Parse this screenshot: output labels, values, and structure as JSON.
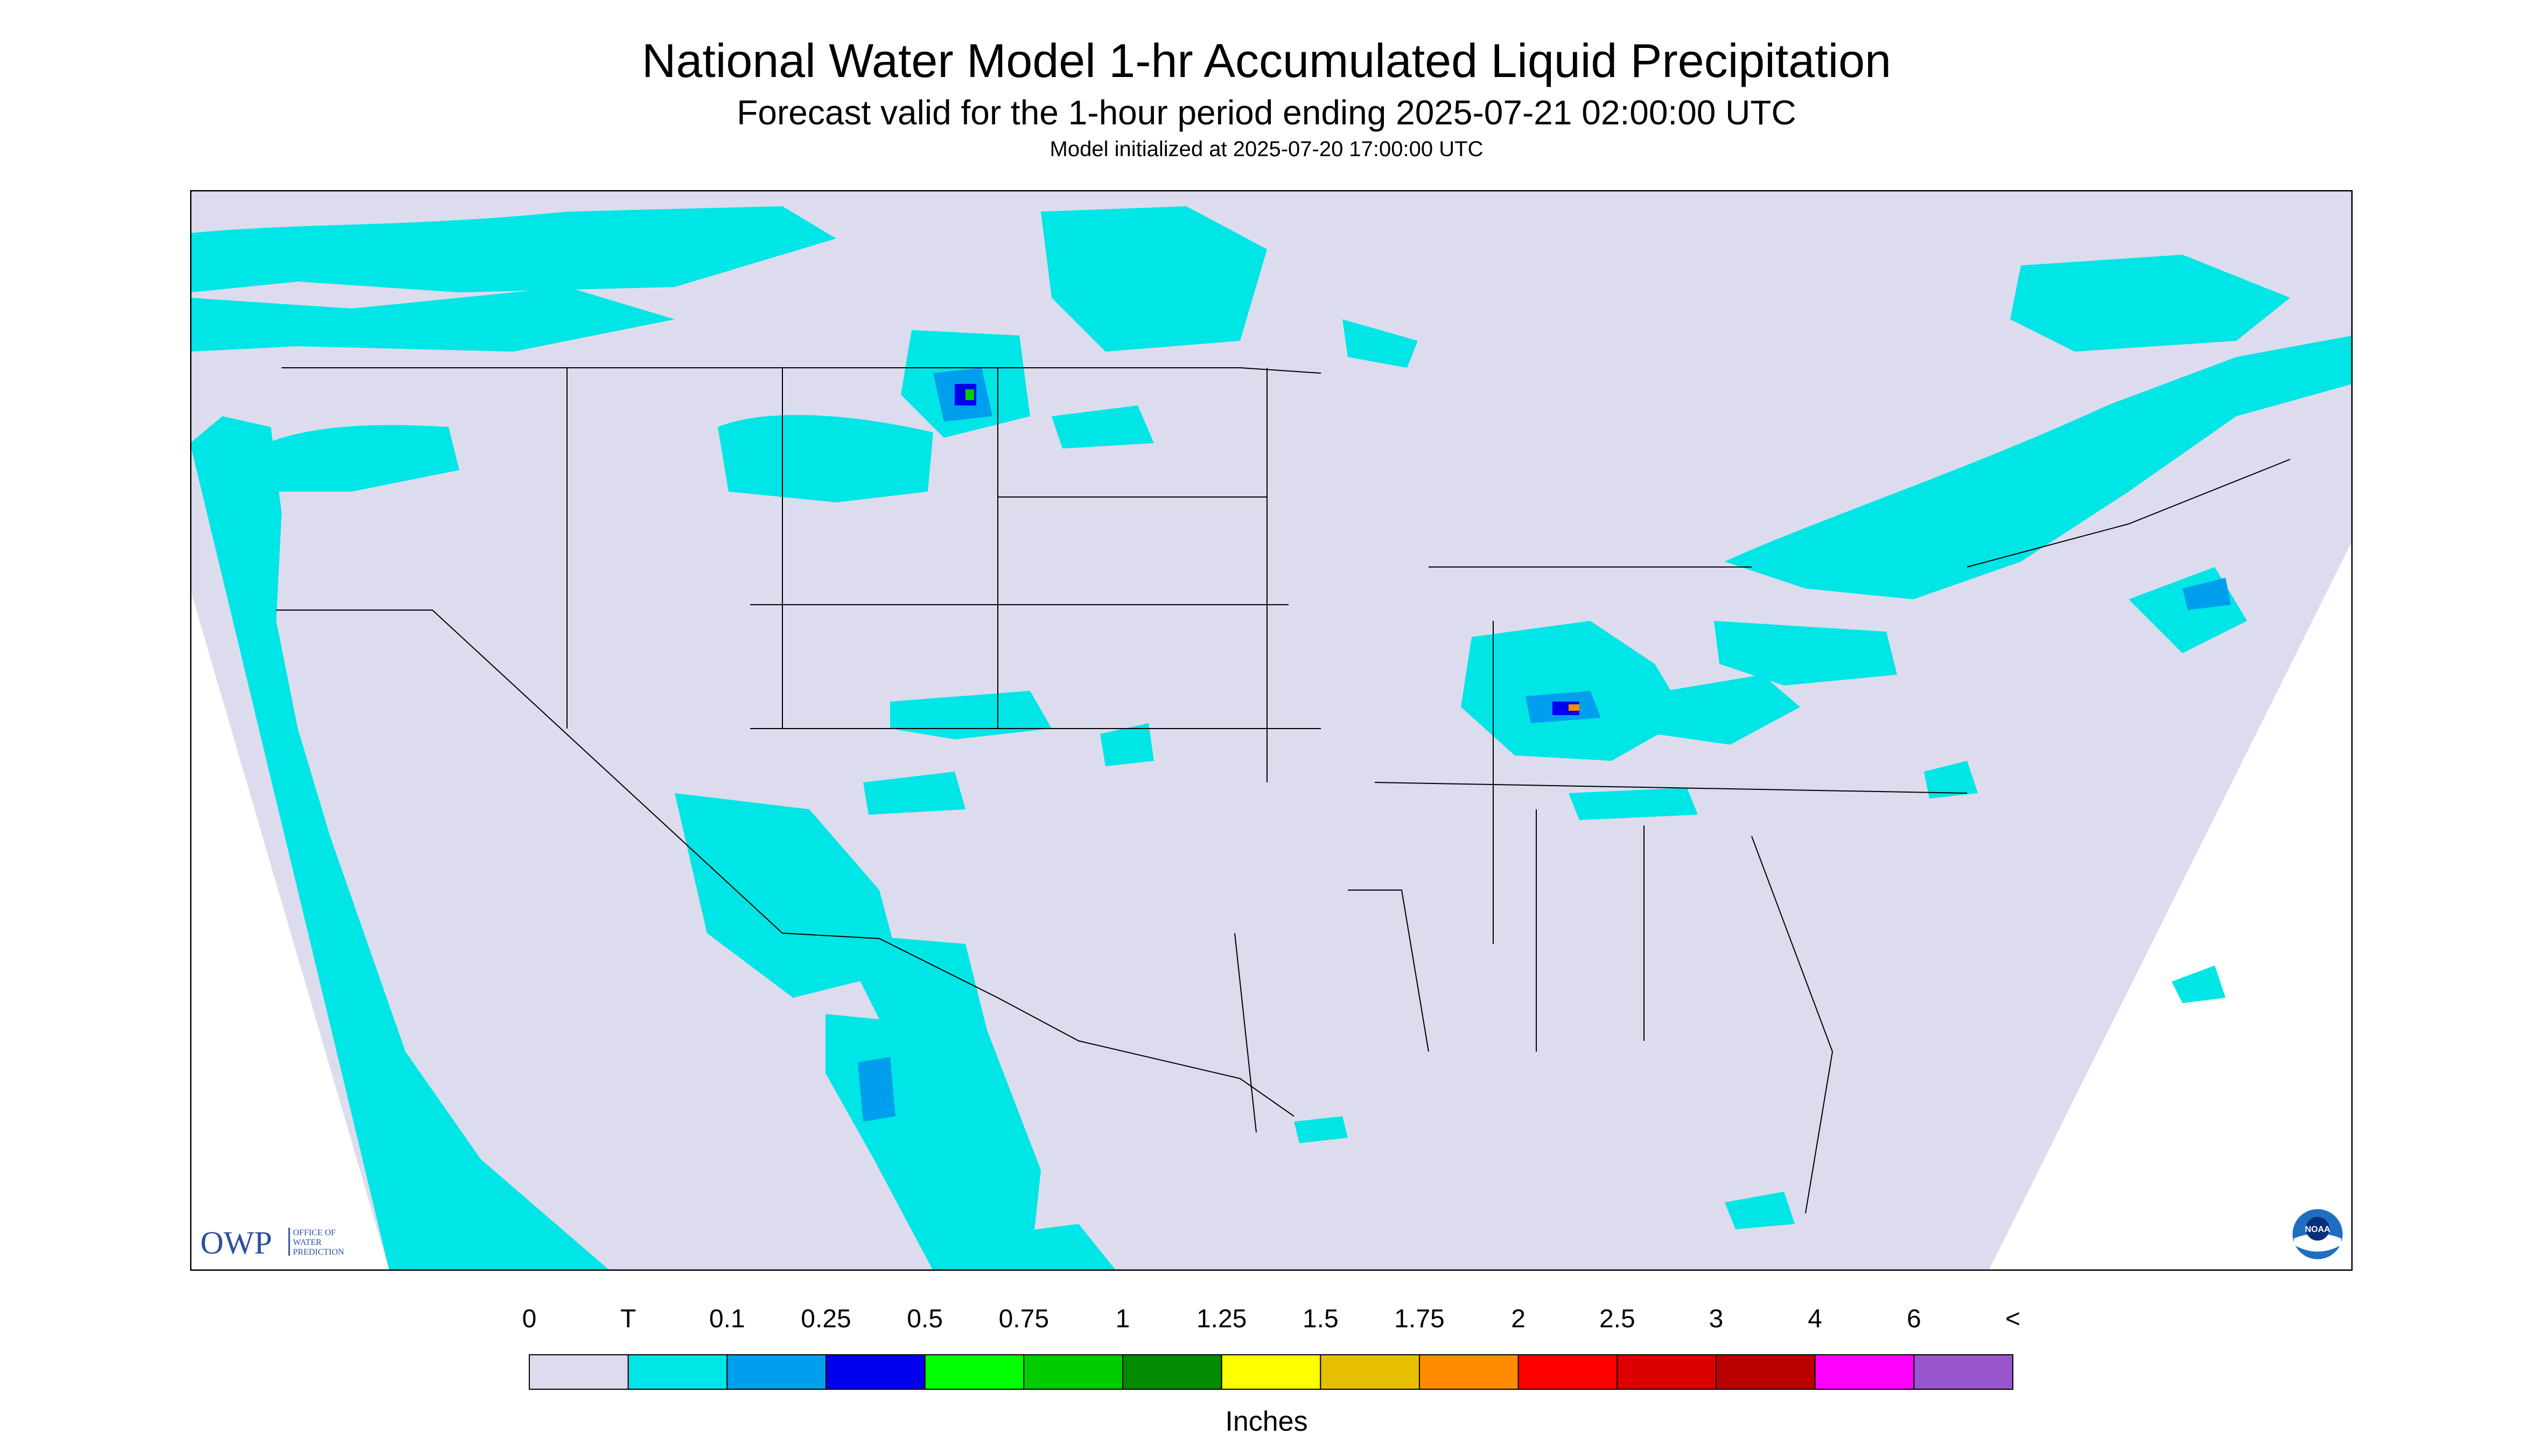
{
  "title": "National Water Model 1-hr Accumulated Liquid Precipitation",
  "subtitle": "Forecast valid for the 1-hour period ending 2025-07-21 02:00:00 UTC",
  "init_line": "Model initialized at 2025-07-20 17:00:00 UTC",
  "legend": {
    "units": "Inches",
    "labels": [
      "0",
      "T",
      "0.1",
      "0.25",
      "0.5",
      "0.75",
      "1",
      "1.25",
      "1.5",
      "1.75",
      "2",
      "2.5",
      "3",
      "4",
      "6",
      "<"
    ],
    "colors": [
      "#dcdcee",
      "#00e5e5",
      "#009fee",
      "#0000ee",
      "#00ff00",
      "#00cd00",
      "#008b00",
      "#ffff00",
      "#e6bf00",
      "#ff8c00",
      "#ff0000",
      "#dd0000",
      "#bb0000",
      "#ff00ff",
      "#9956cc"
    ]
  },
  "logos": {
    "owp_text": "OWP",
    "owp_sub": [
      "OFFICE OF",
      "WATER",
      "PREDICTION"
    ],
    "noaa_text": "NOAA"
  },
  "map": {
    "background_color": "#dcdcee",
    "precip_color": "#00e5e5",
    "heavy_color": "#009fee",
    "core_color": "#0000ee",
    "outside_color": "#ffffff"
  }
}
